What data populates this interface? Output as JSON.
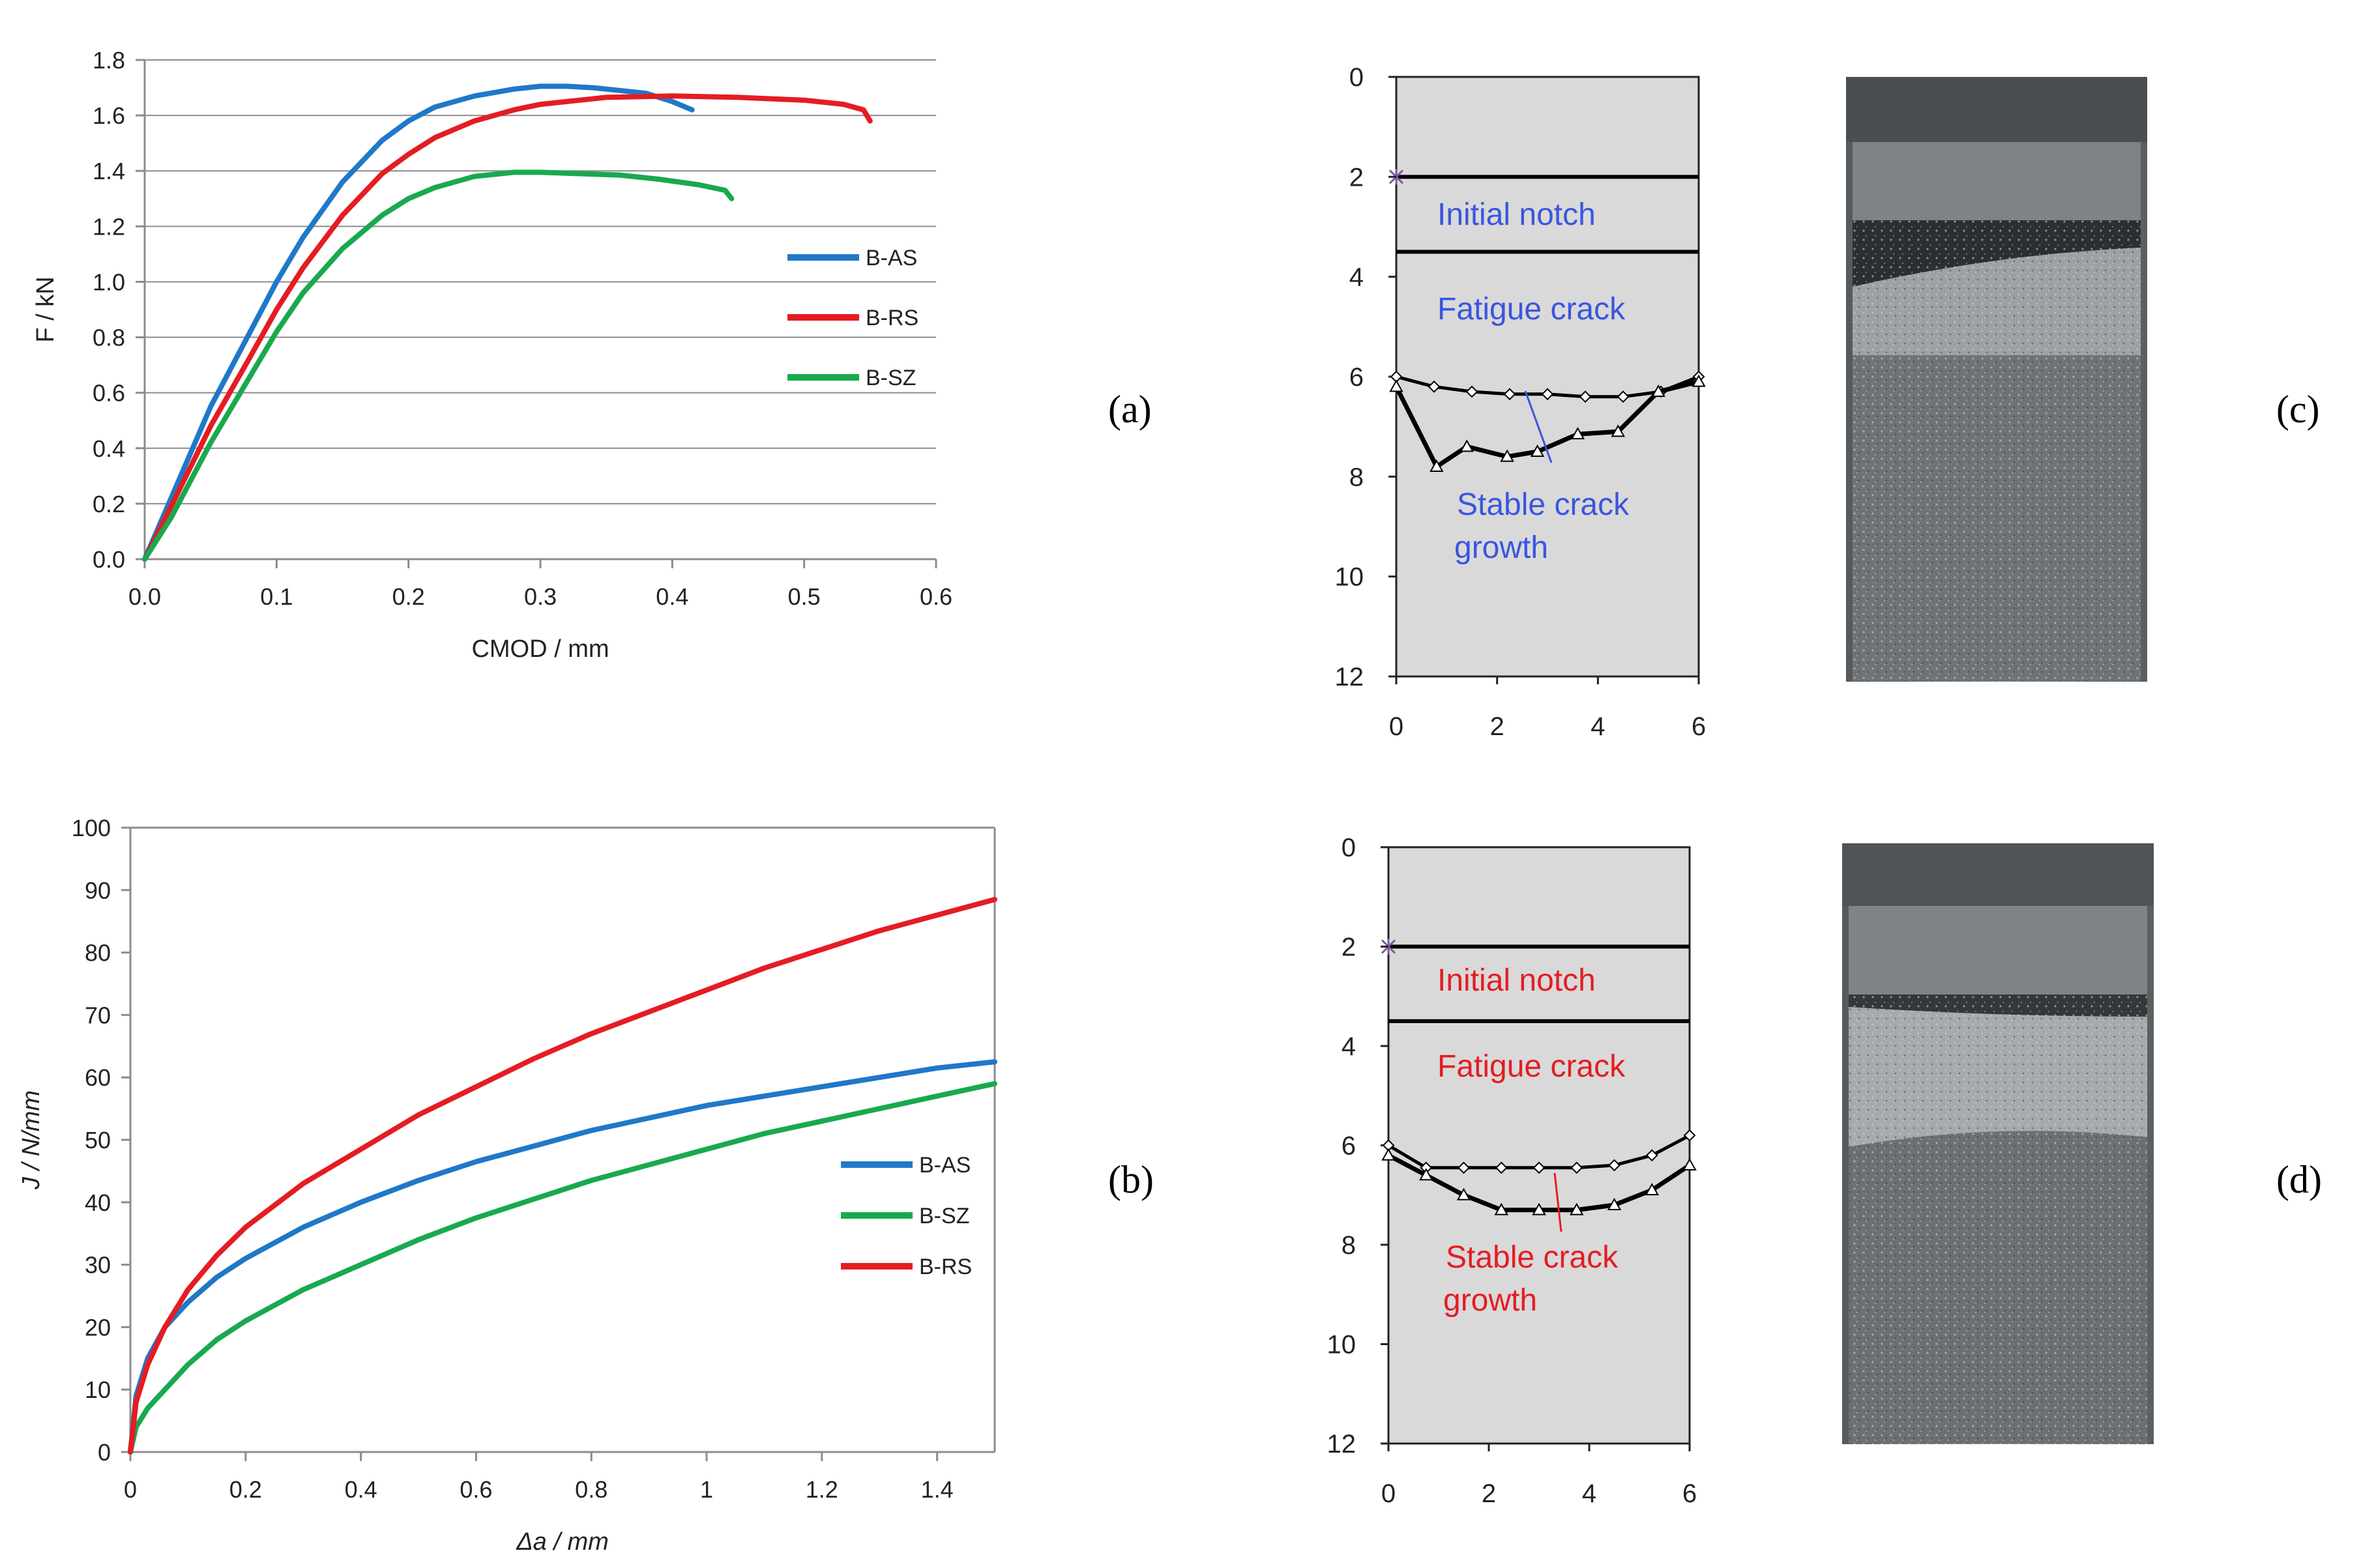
{
  "panels": {
    "a": "(a)",
    "b": "(b)",
    "c": "(c)",
    "d": "(d)"
  },
  "chart_data": [
    {
      "id": "a",
      "type": "line",
      "xlabel": "CMOD / mm",
      "ylabel": "F / kN",
      "xlim": [
        0,
        0.6
      ],
      "ylim": [
        0,
        1.8
      ],
      "xticks": [
        "0.0",
        "0.1",
        "0.2",
        "0.3",
        "0.4",
        "0.5",
        "0.6"
      ],
      "yticks": [
        "0.0",
        "0.2",
        "0.4",
        "0.6",
        "0.8",
        "1.0",
        "1.2",
        "1.4",
        "1.6",
        "1.8"
      ],
      "grid": "horizontal",
      "legend": "right",
      "series": [
        {
          "name": "B-AS",
          "color": "#1f78c8",
          "x": [
            0.0,
            0.02,
            0.05,
            0.08,
            0.1,
            0.12,
            0.15,
            0.18,
            0.2,
            0.22,
            0.25,
            0.28,
            0.3,
            0.32,
            0.34,
            0.36,
            0.38,
            0.4,
            0.415
          ],
          "y": [
            0.0,
            0.22,
            0.55,
            0.82,
            1.0,
            1.16,
            1.36,
            1.51,
            1.58,
            1.63,
            1.67,
            1.695,
            1.705,
            1.705,
            1.7,
            1.69,
            1.68,
            1.65,
            1.62
          ]
        },
        {
          "name": "B-RS",
          "color": "#e51c23",
          "x": [
            0.0,
            0.02,
            0.05,
            0.08,
            0.1,
            0.12,
            0.15,
            0.18,
            0.2,
            0.22,
            0.25,
            0.28,
            0.3,
            0.35,
            0.4,
            0.45,
            0.5,
            0.53,
            0.545,
            0.55
          ],
          "y": [
            0.0,
            0.19,
            0.48,
            0.73,
            0.9,
            1.05,
            1.24,
            1.39,
            1.46,
            1.52,
            1.58,
            1.62,
            1.64,
            1.665,
            1.67,
            1.665,
            1.655,
            1.64,
            1.62,
            1.58
          ]
        },
        {
          "name": "B-SZ",
          "color": "#19a94e",
          "x": [
            0.0,
            0.02,
            0.05,
            0.08,
            0.1,
            0.12,
            0.15,
            0.18,
            0.2,
            0.22,
            0.25,
            0.28,
            0.3,
            0.33,
            0.36,
            0.39,
            0.42,
            0.44,
            0.445
          ],
          "y": [
            0.0,
            0.15,
            0.42,
            0.66,
            0.82,
            0.96,
            1.12,
            1.24,
            1.3,
            1.34,
            1.38,
            1.395,
            1.395,
            1.39,
            1.385,
            1.37,
            1.35,
            1.33,
            1.3
          ]
        }
      ]
    },
    {
      "id": "b",
      "type": "line",
      "xlabel": "Δa / mm",
      "ylabel": "J / N/mm",
      "xlim": [
        0,
        1.5
      ],
      "ylim": [
        0,
        100
      ],
      "xticks": [
        "0",
        "0.2",
        "0.4",
        "0.6",
        "0.8",
        "1",
        "1.2",
        "1.4"
      ],
      "yticks": [
        "0",
        "10",
        "20",
        "30",
        "40",
        "50",
        "60",
        "70",
        "80",
        "90",
        "100"
      ],
      "grid": "none",
      "legend": "right",
      "series": [
        {
          "name": "B-AS",
          "color": "#1f78c8",
          "x": [
            0.0,
            0.01,
            0.03,
            0.06,
            0.1,
            0.15,
            0.2,
            0.3,
            0.4,
            0.5,
            0.6,
            0.7,
            0.8,
            0.9,
            1.0,
            1.1,
            1.2,
            1.3,
            1.4,
            1.5
          ],
          "y": [
            0,
            9,
            15,
            20,
            24,
            28,
            31,
            36,
            40,
            43.5,
            46.5,
            49,
            51.5,
            53.5,
            55.5,
            57,
            58.5,
            60,
            61.5,
            62.5
          ]
        },
        {
          "name": "B-SZ",
          "color": "#19a94e",
          "x": [
            0.0,
            0.01,
            0.03,
            0.06,
            0.1,
            0.15,
            0.2,
            0.3,
            0.4,
            0.5,
            0.6,
            0.7,
            0.8,
            0.9,
            1.0,
            1.1,
            1.2,
            1.3,
            1.4,
            1.5
          ],
          "y": [
            0,
            4,
            7,
            10,
            14,
            18,
            21,
            26,
            30,
            34,
            37.5,
            40.5,
            43.5,
            46,
            48.5,
            51,
            53,
            55,
            57,
            59
          ]
        },
        {
          "name": "B-RS",
          "color": "#e51c23",
          "x": [
            0.0,
            0.01,
            0.03,
            0.06,
            0.1,
            0.15,
            0.2,
            0.3,
            0.4,
            0.5,
            0.6,
            0.7,
            0.8,
            0.9,
            1.0,
            1.1,
            1.2,
            1.3,
            1.4,
            1.5
          ],
          "y": [
            0,
            8,
            14,
            20,
            26,
            31.5,
            36,
            43,
            48.5,
            54,
            58.5,
            63,
            67,
            70.5,
            74,
            77.5,
            80.5,
            83.5,
            86,
            88.5
          ]
        }
      ]
    },
    {
      "id": "c",
      "type": "line",
      "xlim": [
        0,
        6
      ],
      "ylim": [
        0,
        12
      ],
      "y_inverted": true,
      "xticks": [
        "0",
        "2",
        "4",
        "6"
      ],
      "yticks": [
        "0",
        "2",
        "4",
        "6",
        "8",
        "10",
        "12"
      ],
      "annotation_color": "#3a55e0",
      "notch_depth": 2,
      "fatigue_depth": 3.5,
      "labels": [
        "Initial notch",
        "Fatigue crack",
        "Stable crack",
        "growth"
      ],
      "series": [
        {
          "name": "fatigue front",
          "marker": "diamond",
          "x": [
            0,
            0.75,
            1.5,
            2.25,
            3,
            3.75,
            4.5,
            5.25,
            6
          ],
          "y": [
            6.0,
            6.2,
            6.3,
            6.35,
            6.35,
            6.4,
            6.4,
            6.3,
            6.0
          ]
        },
        {
          "name": "stable growth front",
          "marker": "triangle",
          "x": [
            0,
            0.8,
            1.4,
            2.2,
            2.8,
            3.6,
            4.4,
            5.2,
            6
          ],
          "y": [
            6.2,
            7.8,
            7.4,
            7.6,
            7.5,
            7.15,
            7.1,
            6.3,
            6.1
          ]
        }
      ]
    },
    {
      "id": "d",
      "type": "line",
      "xlim": [
        0,
        6
      ],
      "ylim": [
        0,
        12
      ],
      "y_inverted": true,
      "xticks": [
        "0",
        "2",
        "4",
        "6"
      ],
      "yticks": [
        "0",
        "2",
        "4",
        "6",
        "8",
        "10",
        "12"
      ],
      "annotation_color": "#e51c23",
      "notch_depth": 2,
      "fatigue_depth": 3.5,
      "labels": [
        "Initial notch",
        "Fatigue crack",
        "Stable crack",
        "growth"
      ],
      "series": [
        {
          "name": "fatigue front",
          "marker": "diamond",
          "x": [
            0,
            0.75,
            1.5,
            2.25,
            3,
            3.75,
            4.5,
            5.25,
            6
          ],
          "y": [
            6.0,
            6.45,
            6.45,
            6.45,
            6.45,
            6.45,
            6.4,
            6.2,
            5.8
          ]
        },
        {
          "name": "stable growth front",
          "marker": "triangle",
          "x": [
            0,
            0.75,
            1.5,
            2.25,
            3,
            3.75,
            4.5,
            5.25,
            6
          ],
          "y": [
            6.2,
            6.6,
            7.0,
            7.3,
            7.3,
            7.3,
            7.2,
            6.9,
            6.4
          ]
        }
      ]
    }
  ]
}
